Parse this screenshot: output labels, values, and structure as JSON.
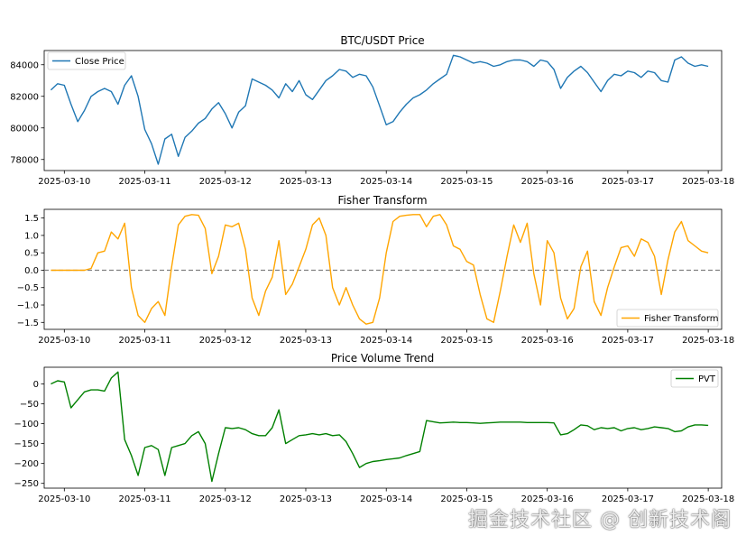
{
  "watermark": "掘金技术社区 @ 创新技术阁",
  "x_ticks": [
    "2025-03-10",
    "2025-03-11",
    "2025-03-12",
    "2025-03-13",
    "2025-03-14",
    "2025-03-15",
    "2025-03-16",
    "2025-03-17",
    "2025-03-18"
  ],
  "chart_data": [
    {
      "type": "line",
      "title": "BTC/USDT Price",
      "xlabel": "",
      "ylabel": "",
      "x_range": [
        "2025-03-09T18:00",
        "2025-03-18T04:00"
      ],
      "ylim": [
        77300,
        84900
      ],
      "y_ticks": [
        78000,
        80000,
        82000,
        84000
      ],
      "y_tick_labels": [
        "78000",
        "80000",
        "82000",
        "84000"
      ],
      "legend": "top-left",
      "series": [
        {
          "name": "Close Price",
          "color": "#1f77b4",
          "x": [
            "2025-03-09T20:00",
            "2025-03-09T22:00",
            "2025-03-10T00:00",
            "2025-03-10T02:00",
            "2025-03-10T04:00",
            "2025-03-10T06:00",
            "2025-03-10T08:00",
            "2025-03-10T10:00",
            "2025-03-10T12:00",
            "2025-03-10T14:00",
            "2025-03-10T16:00",
            "2025-03-10T18:00",
            "2025-03-10T20:00",
            "2025-03-10T22:00",
            "2025-03-11T00:00",
            "2025-03-11T02:00",
            "2025-03-11T04:00",
            "2025-03-11T06:00",
            "2025-03-11T08:00",
            "2025-03-11T10:00",
            "2025-03-11T12:00",
            "2025-03-11T14:00",
            "2025-03-11T16:00",
            "2025-03-11T18:00",
            "2025-03-11T20:00",
            "2025-03-11T22:00",
            "2025-03-12T00:00",
            "2025-03-12T02:00",
            "2025-03-12T04:00",
            "2025-03-12T06:00",
            "2025-03-12T08:00",
            "2025-03-12T10:00",
            "2025-03-12T12:00",
            "2025-03-12T14:00",
            "2025-03-12T16:00",
            "2025-03-12T18:00",
            "2025-03-12T20:00",
            "2025-03-12T22:00",
            "2025-03-13T00:00",
            "2025-03-13T02:00",
            "2025-03-13T04:00",
            "2025-03-13T06:00",
            "2025-03-13T08:00",
            "2025-03-13T10:00",
            "2025-03-13T12:00",
            "2025-03-13T14:00",
            "2025-03-13T16:00",
            "2025-03-13T18:00",
            "2025-03-13T20:00",
            "2025-03-13T22:00",
            "2025-03-14T00:00",
            "2025-03-14T02:00",
            "2025-03-14T04:00",
            "2025-03-14T06:00",
            "2025-03-14T08:00",
            "2025-03-14T10:00",
            "2025-03-14T12:00",
            "2025-03-14T14:00",
            "2025-03-14T16:00",
            "2025-03-14T18:00",
            "2025-03-14T20:00",
            "2025-03-14T22:00",
            "2025-03-15T00:00",
            "2025-03-15T02:00",
            "2025-03-15T04:00",
            "2025-03-15T06:00",
            "2025-03-15T08:00",
            "2025-03-15T10:00",
            "2025-03-15T12:00",
            "2025-03-15T14:00",
            "2025-03-15T16:00",
            "2025-03-15T18:00",
            "2025-03-15T20:00",
            "2025-03-15T22:00",
            "2025-03-16T00:00",
            "2025-03-16T02:00",
            "2025-03-16T04:00",
            "2025-03-16T06:00",
            "2025-03-16T08:00",
            "2025-03-16T10:00",
            "2025-03-16T12:00",
            "2025-03-16T14:00",
            "2025-03-16T16:00",
            "2025-03-16T18:00",
            "2025-03-16T20:00",
            "2025-03-16T22:00",
            "2025-03-17T00:00",
            "2025-03-17T02:00",
            "2025-03-17T04:00",
            "2025-03-17T06:00",
            "2025-03-17T08:00",
            "2025-03-17T10:00",
            "2025-03-17T12:00",
            "2025-03-17T14:00",
            "2025-03-17T16:00",
            "2025-03-17T18:00",
            "2025-03-17T20:00",
            "2025-03-17T22:00",
            "2025-03-18T00:00"
          ],
          "values": [
            82400,
            82800,
            82700,
            81500,
            80400,
            81100,
            82000,
            82300,
            82500,
            82300,
            81500,
            82700,
            83300,
            82000,
            79900,
            79000,
            77700,
            79300,
            79600,
            78200,
            79400,
            79800,
            80300,
            80600,
            81200,
            81600,
            80900,
            80000,
            81000,
            81400,
            83100,
            82900,
            82700,
            82400,
            81900,
            82800,
            82300,
            83000,
            82100,
            81800,
            82400,
            83000,
            83300,
            83700,
            83600,
            83200,
            83400,
            83300,
            82600,
            81400,
            80200,
            80400,
            81000,
            81500,
            81900,
            82100,
            82400,
            82800,
            83100,
            83400,
            84600,
            84500,
            84300,
            84100,
            84200,
            84100,
            83900,
            84000,
            84200,
            84300,
            84300,
            84200,
            83900,
            84300,
            84200,
            83700,
            82500,
            83200,
            83600,
            83900,
            83500,
            82900,
            82300,
            83000,
            83400,
            83300,
            83600,
            83500,
            83200,
            83600,
            83500,
            83000,
            82900,
            84300,
            84500,
            84100,
            83900,
            84000,
            83900
          ]
        }
      ]
    },
    {
      "type": "line",
      "title": "Fisher Transform",
      "xlabel": "",
      "ylabel": "",
      "x_range": [
        "2025-03-09T18:00",
        "2025-03-18T04:00"
      ],
      "ylim": [
        -1.7,
        1.75
      ],
      "y_ticks": [
        -1.5,
        -1.0,
        -0.5,
        0.0,
        0.5,
        1.0,
        1.5
      ],
      "y_tick_labels": [
        "−1.5",
        "−1.0",
        "−0.5",
        "0.0",
        "0.5",
        "1.0",
        "1.5"
      ],
      "reference_line": {
        "y": 0,
        "style": "dashed",
        "color": "#808080"
      },
      "legend": "bottom-right",
      "series": [
        {
          "name": "Fisher Transform",
          "color": "#ffa500",
          "x": [
            "2025-03-09T20:00",
            "2025-03-09T22:00",
            "2025-03-10T00:00",
            "2025-03-10T02:00",
            "2025-03-10T04:00",
            "2025-03-10T06:00",
            "2025-03-10T08:00",
            "2025-03-10T10:00",
            "2025-03-10T12:00",
            "2025-03-10T14:00",
            "2025-03-10T16:00",
            "2025-03-10T18:00",
            "2025-03-10T20:00",
            "2025-03-10T22:00",
            "2025-03-11T00:00",
            "2025-03-11T02:00",
            "2025-03-11T04:00",
            "2025-03-11T06:00",
            "2025-03-11T08:00",
            "2025-03-11T10:00",
            "2025-03-11T12:00",
            "2025-03-11T14:00",
            "2025-03-11T16:00",
            "2025-03-11T18:00",
            "2025-03-11T20:00",
            "2025-03-11T22:00",
            "2025-03-12T00:00",
            "2025-03-12T02:00",
            "2025-03-12T04:00",
            "2025-03-12T06:00",
            "2025-03-12T08:00",
            "2025-03-12T10:00",
            "2025-03-12T12:00",
            "2025-03-12T14:00",
            "2025-03-12T16:00",
            "2025-03-12T18:00",
            "2025-03-12T20:00",
            "2025-03-12T22:00",
            "2025-03-13T00:00",
            "2025-03-13T02:00",
            "2025-03-13T04:00",
            "2025-03-13T06:00",
            "2025-03-13T08:00",
            "2025-03-13T10:00",
            "2025-03-13T12:00",
            "2025-03-13T14:00",
            "2025-03-13T16:00",
            "2025-03-13T18:00",
            "2025-03-13T20:00",
            "2025-03-13T22:00",
            "2025-03-14T00:00",
            "2025-03-14T02:00",
            "2025-03-14T04:00",
            "2025-03-14T06:00",
            "2025-03-14T08:00",
            "2025-03-14T10:00",
            "2025-03-14T12:00",
            "2025-03-14T14:00",
            "2025-03-14T16:00",
            "2025-03-14T18:00",
            "2025-03-14T20:00",
            "2025-03-14T22:00",
            "2025-03-15T00:00",
            "2025-03-15T02:00",
            "2025-03-15T04:00",
            "2025-03-15T06:00",
            "2025-03-15T08:00",
            "2025-03-15T10:00",
            "2025-03-15T12:00",
            "2025-03-15T14:00",
            "2025-03-15T16:00",
            "2025-03-15T18:00",
            "2025-03-15T20:00",
            "2025-03-15T22:00",
            "2025-03-16T00:00",
            "2025-03-16T02:00",
            "2025-03-16T04:00",
            "2025-03-16T06:00",
            "2025-03-16T08:00",
            "2025-03-16T10:00",
            "2025-03-16T12:00",
            "2025-03-16T14:00",
            "2025-03-16T16:00",
            "2025-03-16T18:00",
            "2025-03-16T20:00",
            "2025-03-16T22:00",
            "2025-03-17T00:00",
            "2025-03-17T02:00",
            "2025-03-17T04:00",
            "2025-03-17T06:00",
            "2025-03-17T08:00",
            "2025-03-17T10:00",
            "2025-03-17T12:00",
            "2025-03-17T14:00",
            "2025-03-17T16:00",
            "2025-03-17T18:00",
            "2025-03-17T20:00",
            "2025-03-17T22:00",
            "2025-03-18T00:00"
          ],
          "values": [
            0.0,
            0.0,
            0.0,
            0.0,
            0.0,
            0.0,
            0.05,
            0.5,
            0.55,
            1.1,
            0.9,
            1.35,
            -0.5,
            -1.3,
            -1.5,
            -1.1,
            -0.9,
            -1.3,
            0.1,
            1.3,
            1.55,
            1.6,
            1.58,
            1.2,
            -0.1,
            0.4,
            1.3,
            1.25,
            1.35,
            0.6,
            -0.8,
            -1.3,
            -0.6,
            -0.2,
            0.85,
            -0.7,
            -0.4,
            0.1,
            0.6,
            1.3,
            1.5,
            1.0,
            -0.5,
            -1.0,
            -0.5,
            -1.0,
            -1.4,
            -1.55,
            -1.5,
            -0.8,
            0.5,
            1.4,
            1.55,
            1.58,
            1.6,
            1.6,
            1.25,
            1.55,
            1.6,
            1.3,
            0.7,
            0.6,
            0.25,
            0.15,
            -0.7,
            -1.4,
            -1.5,
            -0.6,
            0.4,
            1.3,
            0.8,
            1.35,
            -0.1,
            -1.0,
            0.85,
            0.5,
            -0.8,
            -1.4,
            -1.1,
            0.1,
            0.55,
            -0.9,
            -1.3,
            -0.5,
            0.1,
            0.65,
            0.7,
            0.4,
            0.9,
            0.8,
            0.4,
            -0.7,
            0.3,
            1.1,
            1.4,
            0.85,
            0.7,
            0.55,
            0.5
          ]
        }
      ]
    },
    {
      "type": "line",
      "title": "Price Volume Trend",
      "xlabel": "",
      "ylabel": "",
      "x_range": [
        "2025-03-09T18:00",
        "2025-03-18T04:00"
      ],
      "ylim": [
        -262,
        42
      ],
      "y_ticks": [
        -250,
        -200,
        -150,
        -100,
        -50,
        0
      ],
      "y_tick_labels": [
        "−250",
        "−200",
        "−150",
        "−100",
        "−50",
        "0"
      ],
      "legend": "top-right",
      "series": [
        {
          "name": "PVT",
          "color": "#008000",
          "x": [
            "2025-03-09T20:00",
            "2025-03-09T22:00",
            "2025-03-10T00:00",
            "2025-03-10T02:00",
            "2025-03-10T04:00",
            "2025-03-10T06:00",
            "2025-03-10T08:00",
            "2025-03-10T10:00",
            "2025-03-10T12:00",
            "2025-03-10T14:00",
            "2025-03-10T16:00",
            "2025-03-10T18:00",
            "2025-03-10T20:00",
            "2025-03-10T22:00",
            "2025-03-11T00:00",
            "2025-03-11T02:00",
            "2025-03-11T04:00",
            "2025-03-11T06:00",
            "2025-03-11T08:00",
            "2025-03-11T10:00",
            "2025-03-11T12:00",
            "2025-03-11T14:00",
            "2025-03-11T16:00",
            "2025-03-11T18:00",
            "2025-03-11T20:00",
            "2025-03-11T22:00",
            "2025-03-12T00:00",
            "2025-03-12T02:00",
            "2025-03-12T04:00",
            "2025-03-12T06:00",
            "2025-03-12T08:00",
            "2025-03-12T10:00",
            "2025-03-12T12:00",
            "2025-03-12T14:00",
            "2025-03-12T16:00",
            "2025-03-12T18:00",
            "2025-03-12T20:00",
            "2025-03-12T22:00",
            "2025-03-13T00:00",
            "2025-03-13T02:00",
            "2025-03-13T04:00",
            "2025-03-13T06:00",
            "2025-03-13T08:00",
            "2025-03-13T10:00",
            "2025-03-13T12:00",
            "2025-03-13T14:00",
            "2025-03-13T16:00",
            "2025-03-13T18:00",
            "2025-03-13T20:00",
            "2025-03-13T22:00",
            "2025-03-14T00:00",
            "2025-03-14T02:00",
            "2025-03-14T04:00",
            "2025-03-14T06:00",
            "2025-03-14T08:00",
            "2025-03-14T10:00",
            "2025-03-14T12:00",
            "2025-03-14T14:00",
            "2025-03-14T16:00",
            "2025-03-14T18:00",
            "2025-03-14T20:00",
            "2025-03-14T22:00",
            "2025-03-15T00:00",
            "2025-03-15T02:00",
            "2025-03-15T04:00",
            "2025-03-15T06:00",
            "2025-03-15T08:00",
            "2025-03-15T10:00",
            "2025-03-15T12:00",
            "2025-03-15T14:00",
            "2025-03-15T16:00",
            "2025-03-15T18:00",
            "2025-03-15T20:00",
            "2025-03-15T22:00",
            "2025-03-16T00:00",
            "2025-03-16T02:00",
            "2025-03-16T04:00",
            "2025-03-16T06:00",
            "2025-03-16T08:00",
            "2025-03-16T10:00",
            "2025-03-16T12:00",
            "2025-03-16T14:00",
            "2025-03-16T16:00",
            "2025-03-16T18:00",
            "2025-03-16T20:00",
            "2025-03-16T22:00",
            "2025-03-17T00:00",
            "2025-03-17T02:00",
            "2025-03-17T04:00",
            "2025-03-17T06:00",
            "2025-03-17T08:00",
            "2025-03-17T10:00",
            "2025-03-17T12:00",
            "2025-03-17T14:00",
            "2025-03-17T16:00",
            "2025-03-17T18:00",
            "2025-03-17T20:00",
            "2025-03-17T22:00",
            "2025-03-18T00:00"
          ],
          "values": [
            0,
            8,
            5,
            -60,
            -40,
            -20,
            -15,
            -15,
            -18,
            15,
            30,
            -140,
            -180,
            -230,
            -160,
            -155,
            -165,
            -230,
            -160,
            -155,
            -150,
            -130,
            -120,
            -150,
            -245,
            -175,
            -110,
            -112,
            -110,
            -115,
            -125,
            -130,
            -130,
            -110,
            -65,
            -150,
            -140,
            -130,
            -128,
            -125,
            -128,
            -125,
            -130,
            -128,
            -145,
            -175,
            -210,
            -200,
            -195,
            -193,
            -190,
            -188,
            -186,
            -180,
            -175,
            -170,
            -92,
            -95,
            -98,
            -97,
            -96,
            -97,
            -97,
            -98,
            -99,
            -98,
            -97,
            -96,
            -96,
            -96,
            -96,
            -97,
            -97,
            -97,
            -97,
            -98,
            -128,
            -125,
            -115,
            -103,
            -105,
            -115,
            -110,
            -112,
            -110,
            -118,
            -112,
            -110,
            -115,
            -112,
            -108,
            -110,
            -112,
            -120,
            -118,
            -108,
            -103,
            -103,
            -104
          ]
        }
      ]
    }
  ]
}
